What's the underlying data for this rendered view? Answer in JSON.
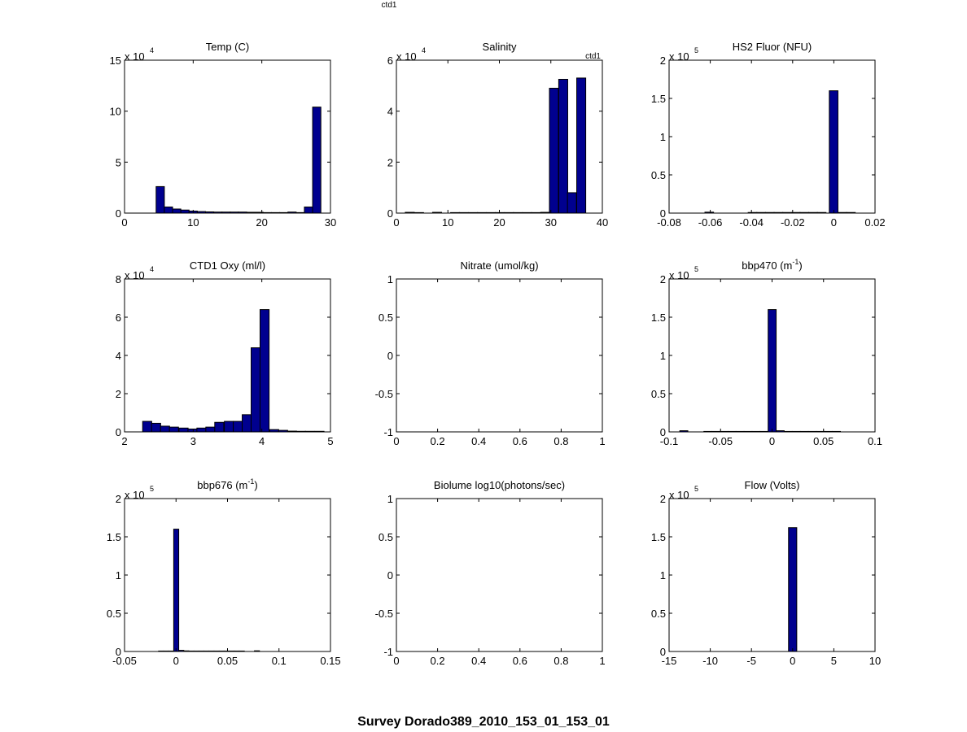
{
  "figure": {
    "top_label": "ctd1",
    "suptitle": "Survey Dorado389_2010_153_01_153_01"
  },
  "chart_data": [
    {
      "type": "bar",
      "title": "Temp (C)",
      "title_sup": "",
      "exponent_label": "x 10",
      "exponent_power": "4",
      "xlim": [
        0,
        30
      ],
      "ylim": [
        0,
        150000
      ],
      "xticks": [
        0,
        10,
        20,
        30
      ],
      "xtick_labels": [
        "0",
        "10",
        "20",
        "30"
      ],
      "yticks": [
        0,
        50000,
        100000,
        150000
      ],
      "ytick_labels": [
        "0",
        "5",
        "10",
        "15"
      ],
      "bin_width": 1.2,
      "bins": [
        {
          "x": 5.2,
          "v": 26000
        },
        {
          "x": 6.4,
          "v": 6000
        },
        {
          "x": 7.6,
          "v": 4000
        },
        {
          "x": 8.8,
          "v": 3000
        },
        {
          "x": 10.0,
          "v": 2000
        },
        {
          "x": 11.2,
          "v": 1500
        },
        {
          "x": 12.4,
          "v": 1200
        },
        {
          "x": 13.6,
          "v": 1000
        },
        {
          "x": 14.8,
          "v": 1000
        },
        {
          "x": 16.0,
          "v": 1000
        },
        {
          "x": 17.2,
          "v": 1000
        },
        {
          "x": 18.4,
          "v": 800
        },
        {
          "x": 19.6,
          "v": 800
        },
        {
          "x": 20.8,
          "v": 500
        },
        {
          "x": 22.0,
          "v": 500
        },
        {
          "x": 23.2,
          "v": 500
        },
        {
          "x": 24.4,
          "v": 1000
        },
        {
          "x": 25.6,
          "v": 500
        },
        {
          "x": 26.8,
          "v": 6000
        },
        {
          "x": 28.0,
          "v": 104000
        }
      ]
    },
    {
      "type": "bar",
      "title": "Salinity",
      "title_sup": "",
      "corner_label": "ctd1",
      "exponent_label": "x 10",
      "exponent_power": "4",
      "xlim": [
        0,
        40
      ],
      "ylim": [
        0,
        60000
      ],
      "xticks": [
        0,
        10,
        20,
        30,
        40
      ],
      "xtick_labels": [
        "0",
        "10",
        "20",
        "30",
        "40"
      ],
      "yticks": [
        0,
        20000,
        40000,
        60000
      ],
      "ytick_labels": [
        "0",
        "2",
        "4",
        "6"
      ],
      "bin_width": 1.75,
      "bins": [
        {
          "x": 2.6,
          "v": 300
        },
        {
          "x": 4.4,
          "v": 200
        },
        {
          "x": 7.9,
          "v": 300
        },
        {
          "x": 11.4,
          "v": 200
        },
        {
          "x": 13.1,
          "v": 200
        },
        {
          "x": 14.9,
          "v": 200
        },
        {
          "x": 16.6,
          "v": 200
        },
        {
          "x": 18.4,
          "v": 200
        },
        {
          "x": 20.1,
          "v": 200
        },
        {
          "x": 21.9,
          "v": 200
        },
        {
          "x": 23.6,
          "v": 200
        },
        {
          "x": 25.4,
          "v": 200
        },
        {
          "x": 27.1,
          "v": 200
        },
        {
          "x": 28.9,
          "v": 300
        },
        {
          "x": 30.6,
          "v": 49000
        },
        {
          "x": 32.4,
          "v": 52500
        },
        {
          "x": 34.1,
          "v": 8000
        },
        {
          "x": 35.9,
          "v": 53000
        }
      ]
    },
    {
      "type": "bar",
      "title": "HS2 Fluor (NFU)",
      "title_sup": "",
      "exponent_label": "x 10",
      "exponent_power": "5",
      "xlim": [
        -0.08,
        0.02
      ],
      "ylim": [
        0,
        200000
      ],
      "xticks": [
        -0.08,
        -0.06,
        -0.04,
        -0.02,
        0,
        0.02
      ],
      "xtick_labels": [
        "-0.08",
        "-0.06",
        "-0.04",
        "-0.02",
        "0",
        "0.02"
      ],
      "yticks": [
        0,
        50000,
        100000,
        150000,
        200000
      ],
      "ytick_labels": [
        "0",
        "0.5",
        "1",
        "1.5",
        "2"
      ],
      "bin_width": 0.0042,
      "bins": [
        {
          "x": -0.0605,
          "v": 1200
        },
        {
          "x": -0.0395,
          "v": 800
        },
        {
          "x": -0.0353,
          "v": 800
        },
        {
          "x": -0.0311,
          "v": 800
        },
        {
          "x": -0.0269,
          "v": 800
        },
        {
          "x": -0.0227,
          "v": 800
        },
        {
          "x": -0.0185,
          "v": 800
        },
        {
          "x": -0.0143,
          "v": 800
        },
        {
          "x": -0.0101,
          "v": 800
        },
        {
          "x": -0.0059,
          "v": 800
        },
        {
          "x": -0.0001,
          "v": 160000
        },
        {
          "x": 0.0041,
          "v": 800
        },
        {
          "x": 0.0083,
          "v": 800
        }
      ]
    },
    {
      "type": "bar",
      "title": "CTD1 Oxy (ml/l)",
      "title_sup": "",
      "exponent_label": "x 10",
      "exponent_power": "4",
      "xlim": [
        2,
        5
      ],
      "ylim": [
        0,
        80000
      ],
      "xticks": [
        2,
        3,
        4,
        5
      ],
      "xtick_labels": [
        "2",
        "3",
        "4",
        "5"
      ],
      "yticks": [
        0,
        20000,
        40000,
        60000,
        80000
      ],
      "ytick_labels": [
        "0",
        "2",
        "4",
        "6",
        "8"
      ],
      "bin_width": 0.132,
      "bins": [
        {
          "x": 2.33,
          "v": 5500
        },
        {
          "x": 2.46,
          "v": 4500
        },
        {
          "x": 2.59,
          "v": 3000
        },
        {
          "x": 2.72,
          "v": 2500
        },
        {
          "x": 2.86,
          "v": 2000
        },
        {
          "x": 2.99,
          "v": 1500
        },
        {
          "x": 3.12,
          "v": 2000
        },
        {
          "x": 3.25,
          "v": 2500
        },
        {
          "x": 3.38,
          "v": 5000
        },
        {
          "x": 3.52,
          "v": 5500
        },
        {
          "x": 3.65,
          "v": 5500
        },
        {
          "x": 3.78,
          "v": 9000
        },
        {
          "x": 3.91,
          "v": 44000
        },
        {
          "x": 4.04,
          "v": 64000
        },
        {
          "x": 4.18,
          "v": 1200
        },
        {
          "x": 4.31,
          "v": 800
        },
        {
          "x": 4.44,
          "v": 400
        },
        {
          "x": 4.57,
          "v": 300
        },
        {
          "x": 4.7,
          "v": 300
        },
        {
          "x": 4.84,
          "v": 300
        }
      ]
    },
    {
      "type": "bar",
      "title": "Nitrate (umol/kg)",
      "title_sup": "",
      "exponent_label": "",
      "exponent_power": "",
      "xlim": [
        0,
        1
      ],
      "ylim": [
        -1,
        1
      ],
      "xticks": [
        0,
        0.2,
        0.4,
        0.6,
        0.8,
        1
      ],
      "xtick_labels": [
        "0",
        "0.2",
        "0.4",
        "0.6",
        "0.8",
        "1"
      ],
      "yticks": [
        -1,
        -0.5,
        0,
        0.5,
        1
      ],
      "ytick_labels": [
        "-1",
        "-0.5",
        "0",
        "0.5",
        "1"
      ],
      "bin_width": 0,
      "bins": []
    },
    {
      "type": "bar",
      "title": "bbp470 (m",
      "title_sup": "-1",
      "title_tail": ")",
      "exponent_label": "x 10",
      "exponent_power": "5",
      "xlim": [
        -0.1,
        0.1
      ],
      "ylim": [
        0,
        200000
      ],
      "xticks": [
        -0.1,
        -0.05,
        0,
        0.05,
        0.1
      ],
      "xtick_labels": [
        "-0.1",
        "-0.05",
        "0",
        "0.05",
        "0.1"
      ],
      "yticks": [
        0,
        50000,
        100000,
        150000,
        200000
      ],
      "ytick_labels": [
        "0",
        "0.5",
        "1",
        "1.5",
        "2"
      ],
      "bin_width": 0.0078,
      "bins": [
        {
          "x": -0.0857,
          "v": 1500
        },
        {
          "x": -0.0623,
          "v": 600
        },
        {
          "x": -0.0545,
          "v": 600
        },
        {
          "x": -0.0467,
          "v": 600
        },
        {
          "x": -0.0389,
          "v": 600
        },
        {
          "x": -0.0311,
          "v": 600
        },
        {
          "x": -0.0233,
          "v": 600
        },
        {
          "x": -0.0155,
          "v": 600
        },
        {
          "x": -0.0077,
          "v": 600
        },
        {
          "x": 0.0001,
          "v": 160000
        },
        {
          "x": 0.0079,
          "v": 1500
        },
        {
          "x": 0.0157,
          "v": 600
        },
        {
          "x": 0.0235,
          "v": 600
        },
        {
          "x": 0.0313,
          "v": 600
        },
        {
          "x": 0.0391,
          "v": 600
        },
        {
          "x": 0.0469,
          "v": 600
        },
        {
          "x": 0.0547,
          "v": 600
        },
        {
          "x": 0.0625,
          "v": 600
        }
      ]
    },
    {
      "type": "bar",
      "title": "bbp676 (m",
      "title_sup": "-1",
      "title_tail": ")",
      "exponent_label": "x 10",
      "exponent_power": "5",
      "xlim": [
        -0.05,
        0.15
      ],
      "ylim": [
        0,
        200000
      ],
      "xticks": [
        -0.05,
        0,
        0.05,
        0.1,
        0.15
      ],
      "xtick_labels": [
        "-0.05",
        "0",
        "0.05",
        "0.1",
        "0.15"
      ],
      "yticks": [
        0,
        50000,
        100000,
        150000,
        200000
      ],
      "ytick_labels": [
        "0",
        "0.5",
        "1",
        "1.5",
        "2"
      ],
      "bin_width": 0.0049,
      "bins": [
        {
          "x": -0.0145,
          "v": 600
        },
        {
          "x": -0.0096,
          "v": 600
        },
        {
          "x": -0.0047,
          "v": 600
        },
        {
          "x": 0.0002,
          "v": 160000
        },
        {
          "x": 0.0051,
          "v": 1500
        },
        {
          "x": 0.01,
          "v": 800
        },
        {
          "x": 0.0149,
          "v": 600
        },
        {
          "x": 0.0198,
          "v": 600
        },
        {
          "x": 0.0247,
          "v": 600
        },
        {
          "x": 0.0296,
          "v": 600
        },
        {
          "x": 0.0345,
          "v": 600
        },
        {
          "x": 0.0394,
          "v": 600
        },
        {
          "x": 0.0443,
          "v": 600
        },
        {
          "x": 0.0492,
          "v": 600
        },
        {
          "x": 0.0541,
          "v": 600
        },
        {
          "x": 0.059,
          "v": 600
        },
        {
          "x": 0.0639,
          "v": 600
        },
        {
          "x": 0.0786,
          "v": 900
        }
      ]
    },
    {
      "type": "bar",
      "title": "Biolume log10(photons/sec)",
      "title_sup": "",
      "exponent_label": "",
      "exponent_power": "",
      "xlim": [
        0,
        1
      ],
      "ylim": [
        -1,
        1
      ],
      "xticks": [
        0,
        0.2,
        0.4,
        0.6,
        0.8,
        1
      ],
      "xtick_labels": [
        "0",
        "0.2",
        "0.4",
        "0.6",
        "0.8",
        "1"
      ],
      "yticks": [
        -1,
        -0.5,
        0,
        0.5,
        1
      ],
      "ytick_labels": [
        "-1",
        "-0.5",
        "0",
        "0.5",
        "1"
      ],
      "bin_width": 0,
      "bins": []
    },
    {
      "type": "bar",
      "title": "Flow (Volts)",
      "title_sup": "",
      "exponent_label": "x 10",
      "exponent_power": "5",
      "xlim": [
        -15,
        10
      ],
      "ylim": [
        0,
        200000
      ],
      "xticks": [
        -15,
        -10,
        -5,
        0,
        5,
        10
      ],
      "xtick_labels": [
        "-15",
        "-10",
        "-5",
        "0",
        "5",
        "10"
      ],
      "yticks": [
        0,
        50000,
        100000,
        150000,
        200000
      ],
      "ytick_labels": [
        "0",
        "0.5",
        "1",
        "1.5",
        "2"
      ],
      "bin_width": 1.0,
      "bins": [
        {
          "x": 0.0,
          "v": 162000
        }
      ]
    }
  ]
}
